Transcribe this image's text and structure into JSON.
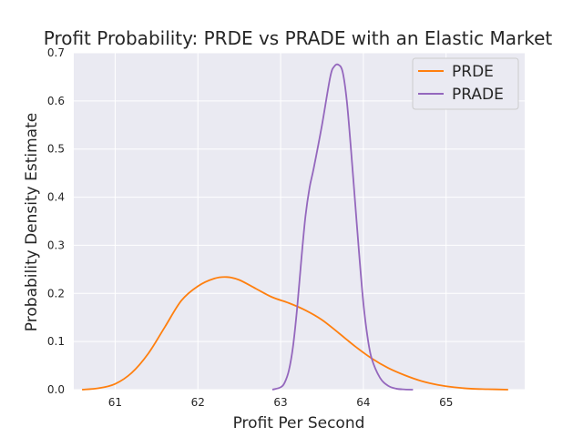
{
  "chart_data": {
    "type": "line",
    "title": "Profit Probability: PRDE vs PRADE with an Elastic Market",
    "xlabel": "Profit Per Second",
    "ylabel": "Probability Density Estimate",
    "xlim": [
      60.5,
      65.95
    ],
    "ylim": [
      0,
      0.7
    ],
    "xticks": [
      61,
      62,
      63,
      64,
      65
    ],
    "yticks": [
      0.0,
      0.1,
      0.2,
      0.3,
      0.4,
      0.5,
      0.6,
      0.7
    ],
    "xtick_labels": [
      "61",
      "62",
      "63",
      "64",
      "65"
    ],
    "ytick_labels": [
      "0.0",
      "0.1",
      "0.2",
      "0.3",
      "0.4",
      "0.5",
      "0.6",
      "0.7"
    ],
    "grid": true,
    "legend_position": "top-right",
    "background": "#eaeaf2",
    "series": [
      {
        "name": "PRDE",
        "color": "#ff7f0e",
        "x": [
          60.6,
          60.8,
          61.0,
          61.2,
          61.4,
          61.6,
          61.8,
          62.0,
          62.2,
          62.35,
          62.5,
          62.7,
          62.9,
          63.1,
          63.3,
          63.5,
          63.7,
          63.9,
          64.1,
          64.3,
          64.5,
          64.7,
          64.9,
          65.1,
          65.3,
          65.5,
          65.75
        ],
        "y": [
          0.0,
          0.003,
          0.012,
          0.035,
          0.075,
          0.13,
          0.185,
          0.215,
          0.231,
          0.234,
          0.228,
          0.21,
          0.192,
          0.18,
          0.165,
          0.145,
          0.118,
          0.09,
          0.065,
          0.045,
          0.03,
          0.018,
          0.01,
          0.005,
          0.002,
          0.001,
          0.0
        ]
      },
      {
        "name": "PRADE",
        "color": "#9467bd",
        "x": [
          62.9,
          63.0,
          63.05,
          63.1,
          63.15,
          63.2,
          63.25,
          63.3,
          63.35,
          63.4,
          63.5,
          63.6,
          63.65,
          63.7,
          63.75,
          63.8,
          63.85,
          63.9,
          63.95,
          64.0,
          64.05,
          64.1,
          64.2,
          64.3,
          64.4,
          64.5,
          64.6
        ],
        "y": [
          0.0,
          0.005,
          0.015,
          0.04,
          0.09,
          0.17,
          0.27,
          0.36,
          0.42,
          0.46,
          0.55,
          0.65,
          0.672,
          0.675,
          0.66,
          0.6,
          0.5,
          0.39,
          0.28,
          0.18,
          0.11,
          0.065,
          0.025,
          0.008,
          0.002,
          0.0005,
          0.0
        ]
      }
    ]
  }
}
